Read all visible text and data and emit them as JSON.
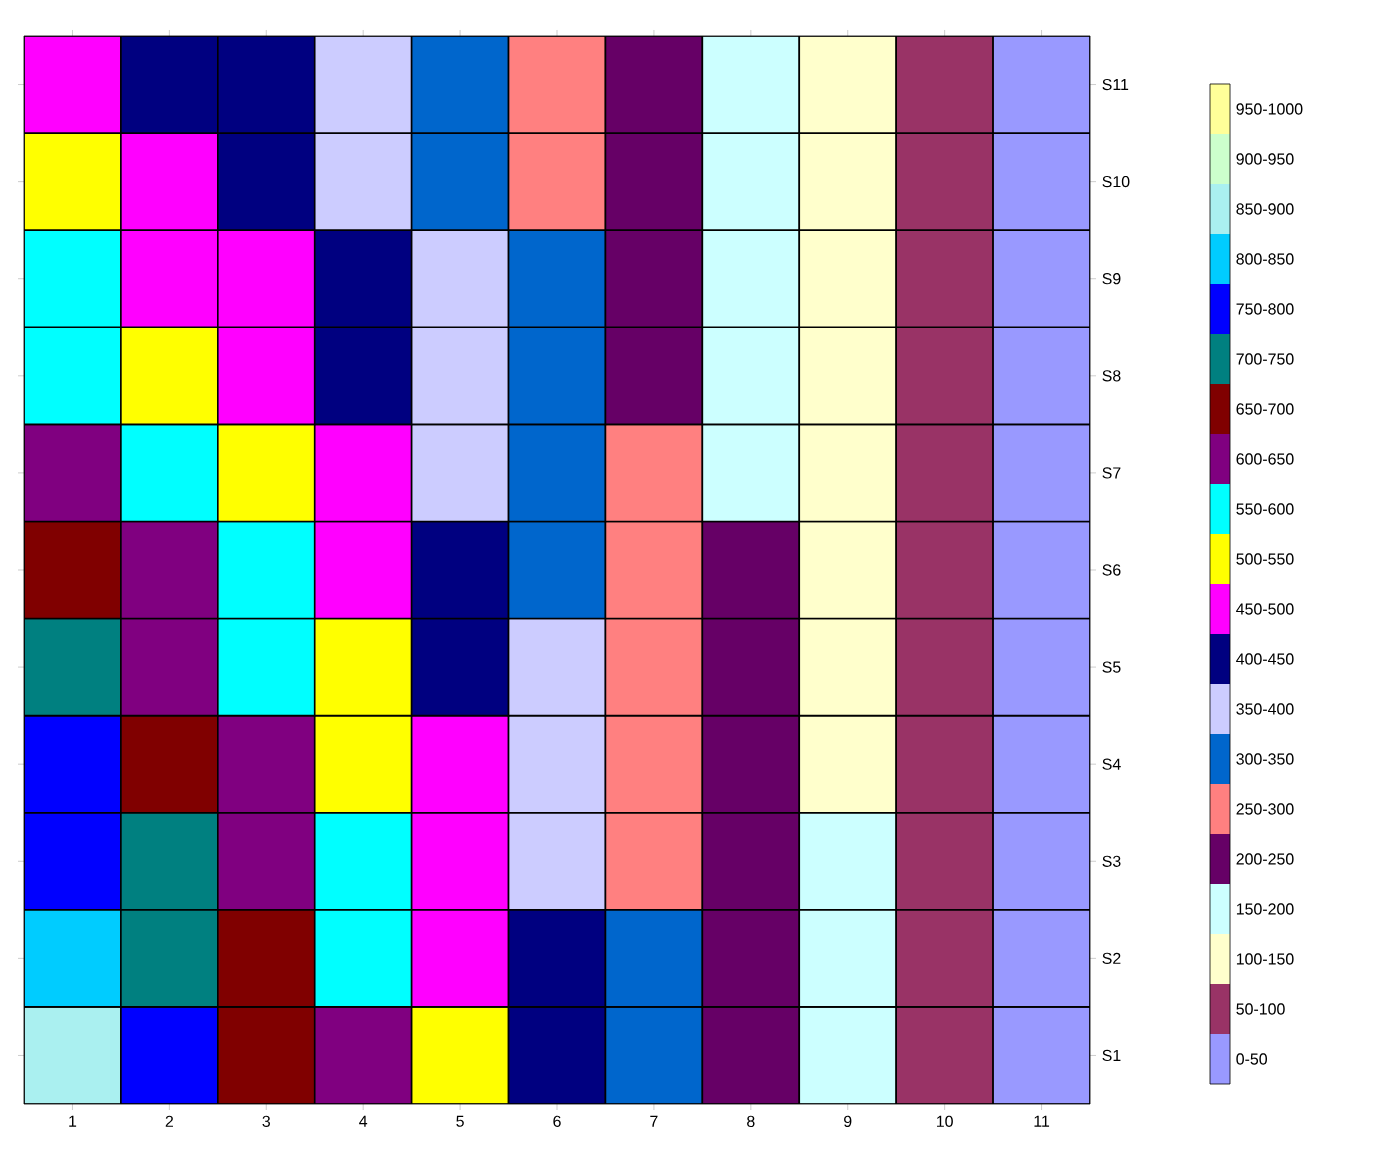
{
  "chart_data": {
    "type": "heatmap",
    "categories": [
      "1",
      "2",
      "3",
      "4",
      "5",
      "6",
      "7",
      "8",
      "9",
      "10",
      "11"
    ],
    "y_categories": [
      "S11",
      "S10",
      "S9",
      "S8",
      "S7",
      "S6",
      "S5",
      "S4",
      "S3",
      "S2",
      "S1"
    ],
    "cells": [
      [
        475,
        430,
        410,
        370,
        320,
        270,
        220,
        170,
        120,
        75,
        30
      ],
      [
        516,
        464,
        438,
        393,
        339,
        285,
        229,
        177,
        124,
        77,
        30
      ],
      [
        556,
        498,
        466,
        416,
        358,
        300,
        238,
        184,
        128,
        79,
        30
      ],
      [
        596,
        532,
        494,
        439,
        377,
        315,
        247,
        191,
        132,
        81,
        30
      ],
      [
        637,
        566,
        522,
        462,
        396,
        330,
        256,
        198,
        136,
        83,
        30
      ],
      [
        678,
        600,
        550,
        485,
        415,
        345,
        265,
        205,
        140,
        85,
        30
      ],
      [
        718,
        634,
        578,
        508,
        434,
        360,
        274,
        212,
        144,
        87,
        30
      ],
      [
        758,
        668,
        606,
        531,
        453,
        375,
        283,
        219,
        148,
        89,
        30
      ],
      [
        799,
        702,
        634,
        554,
        472,
        390,
        292,
        226,
        152,
        91,
        30
      ],
      [
        840,
        736,
        662,
        577,
        491,
        405,
        301,
        233,
        156,
        93,
        30
      ],
      [
        880,
        770,
        690,
        600,
        510,
        420,
        310,
        240,
        160,
        95,
        30
      ]
    ],
    "clim": [
      0,
      1000
    ],
    "colors": [
      "#9999ff",
      "#993366",
      "#ffffcc",
      "#ccffff",
      "#660066",
      "#ff8080",
      "#0066cc",
      "#ccccff",
      "#000080",
      "#ff00ff",
      "#ffff00",
      "#00ffff",
      "#800080",
      "#800000",
      "#008080",
      "#0000ff",
      "#00ccff",
      "#aaf0f0",
      "#ccffcc",
      "#ffff99"
    ],
    "cticks": [
      {
        "value": 25,
        "label": "0-50"
      },
      {
        "value": 75,
        "label": "50-100"
      },
      {
        "value": 125,
        "label": "100-150"
      },
      {
        "value": 175,
        "label": "150-200"
      },
      {
        "value": 225,
        "label": "200-250"
      },
      {
        "value": 275,
        "label": "250-300"
      },
      {
        "value": 325,
        "label": "300-350"
      },
      {
        "value": 375,
        "label": "350-400"
      },
      {
        "value": 425,
        "label": "400-450"
      },
      {
        "value": 475,
        "label": "450-500"
      },
      {
        "value": 525,
        "label": "500-550"
      },
      {
        "value": 575,
        "label": "550-600"
      },
      {
        "value": 625,
        "label": "600-650"
      },
      {
        "value": 675,
        "label": "650-700"
      },
      {
        "value": 725,
        "label": "700-750"
      },
      {
        "value": 775,
        "label": "750-800"
      },
      {
        "value": 825,
        "label": "800-850"
      },
      {
        "value": 875,
        "label": "850-900"
      },
      {
        "value": 925,
        "label": "900-950"
      },
      {
        "value": 975,
        "label": "950-1000"
      }
    ]
  }
}
